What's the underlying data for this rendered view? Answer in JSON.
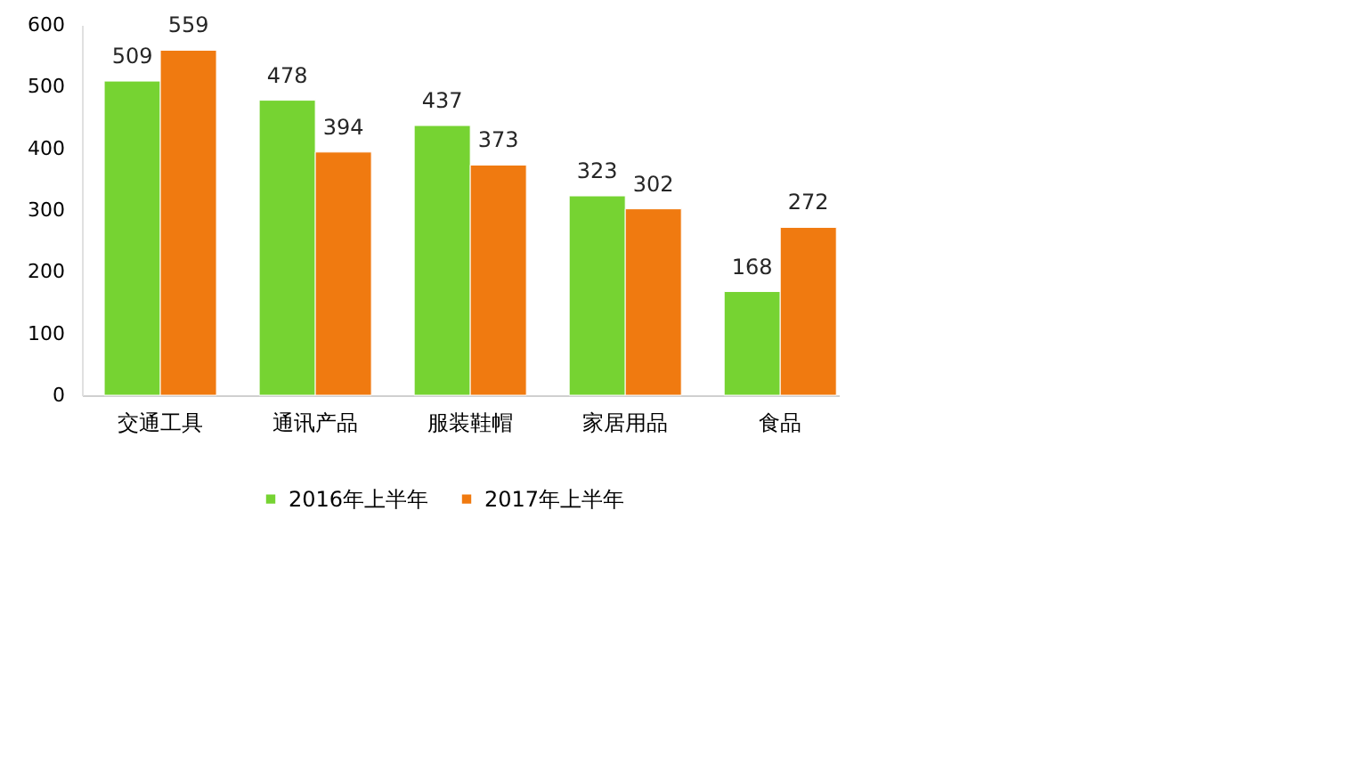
{
  "chart_data": {
    "type": "bar",
    "categories": [
      "交通工具",
      "通讯产品",
      "服装鞋帽",
      "家居用品",
      "食品"
    ],
    "series": [
      {
        "name": "2016年上半年",
        "color": "#76d332",
        "values": [
          509,
          478,
          437,
          323,
          168
        ]
      },
      {
        "name": "2017年上半年",
        "color": "#f07a10",
        "values": [
          559,
          394,
          373,
          302,
          272
        ]
      }
    ],
    "ylim": [
      0,
      600
    ],
    "yticks": [
      0,
      100,
      200,
      300,
      400,
      500,
      600
    ],
    "grid": false,
    "legend": "bottom",
    "data_labels": true
  }
}
